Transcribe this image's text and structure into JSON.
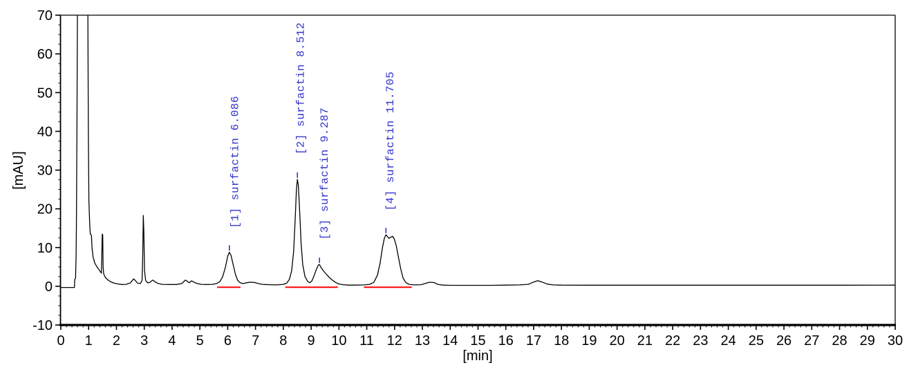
{
  "colors": {
    "background": "#ffffff",
    "trace": "#000000",
    "axis": "#000000",
    "tick_label": "#000000",
    "integration_baseline": "#ff0000",
    "peak_label": "#3333cc"
  },
  "chart_data": {
    "type": "line",
    "title": "",
    "xlabel": "[min]",
    "ylabel": "[mAU]",
    "xlim": [
      0,
      30
    ],
    "ylim": [
      -10,
      70
    ],
    "grid": false,
    "legend": "none",
    "x_major_ticks": [
      0,
      1,
      2,
      3,
      4,
      5,
      6,
      7,
      8,
      9,
      10,
      11,
      12,
      13,
      14,
      15,
      16,
      17,
      18,
      19,
      20,
      21,
      22,
      23,
      24,
      25,
      26,
      27,
      28,
      29,
      30
    ],
    "x_minor_step": 0.2,
    "y_major_ticks": [
      -10,
      0,
      10,
      20,
      30,
      40,
      50,
      60,
      70
    ],
    "y_minor_step": 2.5,
    "series": [
      {
        "name": "detector-signal",
        "color": "#000000",
        "points": [
          [
            0,
            -0.3
          ],
          [
            0.49,
            -0.3
          ],
          [
            0.5,
            1.8
          ],
          [
            0.53,
            2.0
          ],
          [
            0.55,
            8
          ],
          [
            0.56,
            15
          ],
          [
            0.58,
            40
          ],
          [
            0.6,
            76
          ],
          [
            0.97,
            76
          ],
          [
            0.99,
            40
          ],
          [
            1.01,
            22
          ],
          [
            1.04,
            16
          ],
          [
            1.06,
            13.5
          ],
          [
            1.1,
            13.2
          ],
          [
            1.12,
            10
          ],
          [
            1.16,
            7.5
          ],
          [
            1.22,
            6
          ],
          [
            1.3,
            5
          ],
          [
            1.38,
            4.2
          ],
          [
            1.44,
            3.6
          ],
          [
            1.46,
            3.4
          ],
          [
            1.475,
            8
          ],
          [
            1.49,
            13.5
          ],
          [
            1.505,
            13.2
          ],
          [
            1.52,
            5
          ],
          [
            1.54,
            3.2
          ],
          [
            1.6,
            2.3
          ],
          [
            1.68,
            1.7
          ],
          [
            1.78,
            1.2
          ],
          [
            1.92,
            0.8
          ],
          [
            2.05,
            0.6
          ],
          [
            2.2,
            0.45
          ],
          [
            2.35,
            0.5
          ],
          [
            2.5,
            0.9
          ],
          [
            2.62,
            1.9
          ],
          [
            2.68,
            1.5
          ],
          [
            2.76,
            0.8
          ],
          [
            2.86,
            0.7
          ],
          [
            2.92,
            1.5
          ],
          [
            2.945,
            8
          ],
          [
            2.965,
            18.3
          ],
          [
            2.985,
            14
          ],
          [
            3.01,
            4
          ],
          [
            3.05,
            1.5
          ],
          [
            3.12,
            0.9
          ],
          [
            3.2,
            1.0
          ],
          [
            3.3,
            1.6
          ],
          [
            3.4,
            1.1
          ],
          [
            3.5,
            0.7
          ],
          [
            3.65,
            0.5
          ],
          [
            3.9,
            0.45
          ],
          [
            4.15,
            0.45
          ],
          [
            4.35,
            0.7
          ],
          [
            4.48,
            1.6
          ],
          [
            4.56,
            1.2
          ],
          [
            4.62,
            0.9
          ],
          [
            4.7,
            1.4
          ],
          [
            4.78,
            1.1
          ],
          [
            4.9,
            0.7
          ],
          [
            5.05,
            0.5
          ],
          [
            5.25,
            0.45
          ],
          [
            5.45,
            0.5
          ],
          [
            5.6,
            0.7
          ],
          [
            5.72,
            1.2
          ],
          [
            5.82,
            2.5
          ],
          [
            5.92,
            5.0
          ],
          [
            6.0,
            7.8
          ],
          [
            6.06,
            8.8
          ],
          [
            6.12,
            8.0
          ],
          [
            6.2,
            5.5
          ],
          [
            6.28,
            3.0
          ],
          [
            6.36,
            1.5
          ],
          [
            6.45,
            0.9
          ],
          [
            6.55,
            0.7
          ],
          [
            6.68,
            0.9
          ],
          [
            6.8,
            1.05
          ],
          [
            6.95,
            1.0
          ],
          [
            7.1,
            0.7
          ],
          [
            7.25,
            0.5
          ],
          [
            7.5,
            0.4
          ],
          [
            7.75,
            0.35
          ],
          [
            8.0,
            0.5
          ],
          [
            8.12,
            0.8
          ],
          [
            8.22,
            1.8
          ],
          [
            8.3,
            4.0
          ],
          [
            8.37,
            9.0
          ],
          [
            8.43,
            18
          ],
          [
            8.47,
            25
          ],
          [
            8.505,
            27.6
          ],
          [
            8.54,
            26
          ],
          [
            8.59,
            19
          ],
          [
            8.64,
            11
          ],
          [
            8.7,
            5.5
          ],
          [
            8.78,
            2.5
          ],
          [
            8.87,
            1.3
          ],
          [
            8.95,
            0.9
          ],
          [
            9.02,
            1.3
          ],
          [
            9.1,
            2.6
          ],
          [
            9.19,
            4.4
          ],
          [
            9.26,
            5.5
          ],
          [
            9.3,
            5.6
          ],
          [
            9.36,
            4.8
          ],
          [
            9.45,
            3.9
          ],
          [
            9.55,
            3.1
          ],
          [
            9.65,
            2.3
          ],
          [
            9.76,
            1.6
          ],
          [
            9.88,
            1.0
          ],
          [
            10.0,
            0.6
          ],
          [
            10.15,
            0.4
          ],
          [
            10.35,
            0.3
          ],
          [
            10.6,
            0.3
          ],
          [
            10.9,
            0.35
          ],
          [
            11.1,
            0.5
          ],
          [
            11.25,
            1.0
          ],
          [
            11.38,
            2.8
          ],
          [
            11.48,
            6.0
          ],
          [
            11.56,
            9.8
          ],
          [
            11.63,
            12.3
          ],
          [
            11.69,
            13.3
          ],
          [
            11.74,
            12.9
          ],
          [
            11.8,
            12.4
          ],
          [
            11.87,
            12.7
          ],
          [
            11.93,
            12.9
          ],
          [
            11.99,
            12.2
          ],
          [
            12.06,
            10.5
          ],
          [
            12.14,
            7.5
          ],
          [
            12.22,
            4.5
          ],
          [
            12.3,
            2.2
          ],
          [
            12.4,
            1.0
          ],
          [
            12.52,
            0.5
          ],
          [
            12.7,
            0.35
          ],
          [
            12.95,
            0.4
          ],
          [
            13.1,
            0.7
          ],
          [
            13.25,
            1.05
          ],
          [
            13.42,
            0.95
          ],
          [
            13.55,
            0.5
          ],
          [
            13.75,
            0.3
          ],
          [
            14.0,
            0.25
          ],
          [
            14.5,
            0.25
          ],
          [
            15.0,
            0.25
          ],
          [
            15.5,
            0.25
          ],
          [
            16.0,
            0.3
          ],
          [
            16.5,
            0.35
          ],
          [
            16.8,
            0.5
          ],
          [
            17.0,
            1.1
          ],
          [
            17.15,
            1.45
          ],
          [
            17.3,
            1.1
          ],
          [
            17.5,
            0.55
          ],
          [
            17.7,
            0.35
          ],
          [
            18.0,
            0.3
          ],
          [
            19,
            0.28
          ],
          [
            20,
            0.28
          ],
          [
            22,
            0.28
          ],
          [
            24,
            0.28
          ],
          [
            26,
            0.28
          ],
          [
            28,
            0.28
          ],
          [
            30,
            0.3
          ]
        ]
      }
    ],
    "integration_baselines": [
      {
        "t1": 5.62,
        "t2": 6.46,
        "v": -0.25
      },
      {
        "t1": 8.07,
        "t2": 9.96,
        "v": -0.25
      },
      {
        "t1": 10.9,
        "t2": 12.62,
        "v": -0.25
      }
    ],
    "peaks": [
      {
        "index": "1",
        "compound": "surfactin",
        "retention_time": "6.086",
        "label": "[1] surfactin 6.086",
        "apex_t": 6.06,
        "apex_v": 8.8,
        "label_t": 6.22,
        "label_base_v": 15.0
      },
      {
        "index": "2",
        "compound": "surfactin",
        "retention_time": "8.512",
        "label": "[2] surfactin 8.512",
        "apex_t": 8.505,
        "apex_v": 27.6,
        "label_t": 8.59,
        "label_base_v": 34.0
      },
      {
        "index": "3",
        "compound": "surfactin",
        "retention_time": "9.287",
        "label": "[3] surfactin 9.287",
        "apex_t": 9.3,
        "apex_v": 5.6,
        "label_t": 9.45,
        "label_base_v": 12.0
      },
      {
        "index": "4",
        "compound": "surfactin",
        "retention_time": "11.705",
        "label": "[4] surfactin 11.705",
        "apex_t": 11.69,
        "apex_v": 13.3,
        "label_t": 11.81,
        "label_base_v": 19.5
      }
    ]
  }
}
